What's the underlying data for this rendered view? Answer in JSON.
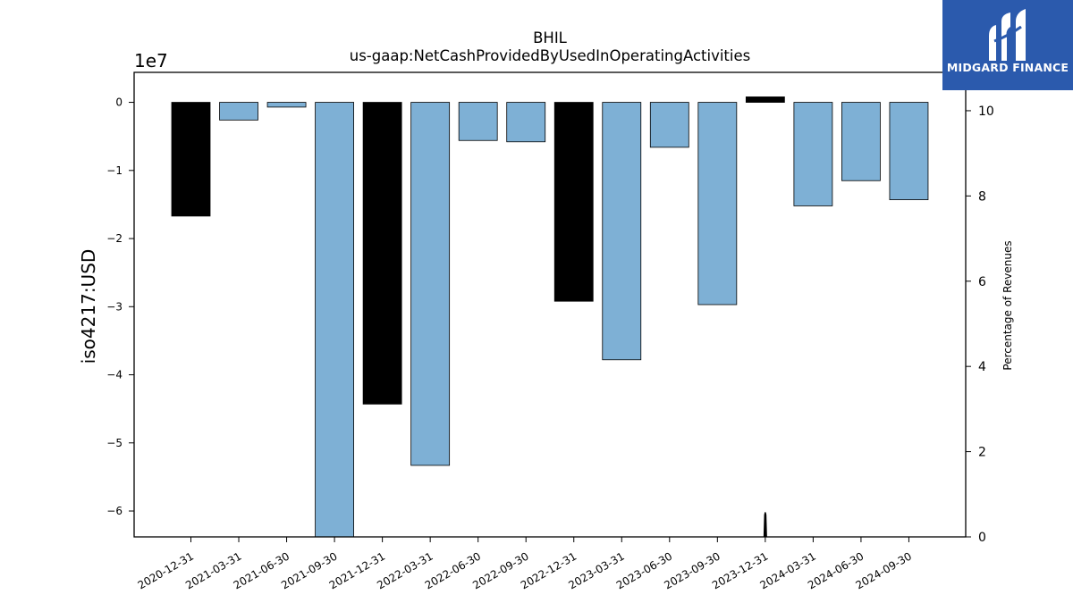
{
  "chart_data": {
    "type": "bar",
    "title": "BHIL",
    "subtitle": "us-gaap:NetCashProvidedByUsedInOperatingActivities",
    "ylabel": "iso4217:USD",
    "y_offset_label": "1e7",
    "y_scale": 10000000,
    "ylim": [
      -6.38,
      0.44
    ],
    "yticks": [
      0,
      -1,
      -2,
      -3,
      -4,
      -5,
      -6
    ],
    "ytick_labels": [
      "0",
      "−1",
      "−2",
      "−3",
      "−4",
      "−5",
      "−6"
    ],
    "y2label": "Percentage of Revenues",
    "y2lim": [
      0,
      10.9
    ],
    "y2ticks": [
      0,
      2,
      4,
      6,
      8,
      10
    ],
    "categories": [
      "2020-12-31",
      "2021-03-31",
      "2021-06-30",
      "2021-09-30",
      "2021-12-31",
      "2022-03-31",
      "2022-06-30",
      "2022-09-30",
      "2022-12-31",
      "2023-03-31",
      "2023-06-30",
      "2023-09-30",
      "2023-12-31",
      "2024-03-31",
      "2024-06-30",
      "2024-09-30"
    ],
    "values": [
      -16700000,
      -2600000,
      -700000,
      -64000000,
      -44300000,
      -53300000,
      -5600000,
      -5800000,
      -29200000,
      -37800000,
      -6600000,
      -29700000,
      800000,
      -15200000,
      -11500000,
      -14300000
    ],
    "bar_colors": [
      "#000000",
      "#7eb0d5",
      "#7eb0d5",
      "#7eb0d5",
      "#000000",
      "#7eb0d5",
      "#7eb0d5",
      "#7eb0d5",
      "#000000",
      "#7eb0d5",
      "#7eb0d5",
      "#7eb0d5",
      "#000000",
      "#7eb0d5",
      "#7eb0d5",
      "#7eb0d5"
    ],
    "pct_series": {
      "values": [
        null,
        null,
        null,
        null,
        null,
        null,
        null,
        null,
        null,
        null,
        null,
        null,
        0.6,
        null,
        null,
        null
      ],
      "color": "#000000"
    },
    "grid": false
  },
  "logo": {
    "text": "MIDGARD FINANCE",
    "bg_color": "#2b5aad"
  }
}
